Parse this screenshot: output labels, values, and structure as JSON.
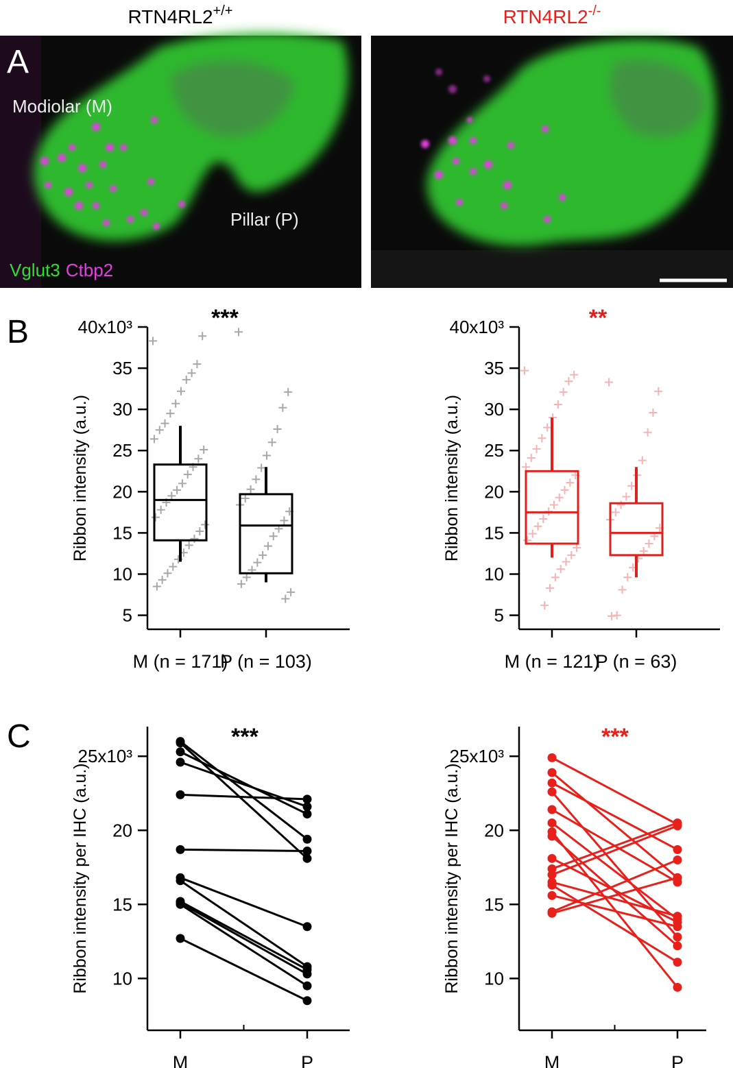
{
  "panel_a": {
    "label": "A",
    "headers": [
      {
        "text": "RTN4RL2",
        "sup": "+/+"
      },
      {
        "text": "RTN4RL2",
        "sup": "-/-"
      }
    ],
    "region_labels": [
      "Modiolar (M)",
      "Pillar (P)"
    ],
    "stains": [
      "Vglut3",
      "Ctbp2"
    ]
  },
  "chart_data": [
    {
      "type": "box",
      "panel_label": "B",
      "annotation": "***",
      "ylabel": "Ribbon intensity (a.u.)",
      "color": "#000000",
      "point_color": "#a8a8a8",
      "categories": [
        "M (n = 171)",
        "P (n = 103)"
      ],
      "ylim": [
        3.3,
        40
      ],
      "yticks": [
        {
          "value": 40,
          "label": "40x10³"
        },
        35,
        30,
        25,
        20,
        15,
        10,
        5
      ],
      "boxes": [
        {
          "whisker_low": 11.5,
          "q1": 14.1,
          "median": 19,
          "q3": 23.3,
          "whisker_high": 28,
          "points": [
            38.3,
            38.9,
            35.5,
            34.4,
            33.6,
            32.2,
            30.7,
            29.5,
            28.3,
            27.5,
            26.4,
            25.1,
            24.0,
            23.0,
            22.1,
            21.0,
            20.2,
            19.5,
            18.7,
            17.8,
            16.9,
            16.0,
            15.2,
            14.3,
            13.5,
            12.6,
            11.8,
            10.9,
            10.1,
            9.3,
            8.5
          ]
        },
        {
          "whisker_low": 9,
          "q1": 10.1,
          "median": 15.9,
          "q3": 19.7,
          "whisker_high": 23,
          "points": [
            39.4,
            32.1,
            30.2,
            27.6,
            26.0,
            24.4,
            22.9,
            21.5,
            20.3,
            19.2,
            18.4,
            17.6,
            16.5,
            15.5,
            14.6,
            13.4,
            12.3,
            11.4,
            10.5,
            9.6,
            8.8,
            7.8,
            7.0
          ]
        }
      ]
    },
    {
      "type": "box",
      "annotation": "**",
      "ylabel": "Ribbon intensity (a.u.)",
      "color": "#e0201c",
      "point_color": "#f4b4b4",
      "categories": [
        "M (n = 121)",
        "P (n = 63)"
      ],
      "ylim": [
        3.3,
        40
      ],
      "yticks": [
        {
          "value": 40,
          "label": "40x10³"
        },
        35,
        30,
        25,
        20,
        15,
        10,
        5
      ],
      "boxes": [
        {
          "whisker_low": 12,
          "q1": 13.7,
          "median": 17.5,
          "q3": 22.5,
          "whisker_high": 29,
          "points": [
            34.7,
            34.2,
            33.4,
            32.1,
            30.6,
            29.0,
            27.8,
            26.5,
            25.2,
            24.1,
            23.0,
            22.0,
            21.1,
            20.2,
            19.3,
            18.4,
            17.6,
            16.7,
            15.8,
            14.9,
            14.1,
            13.2,
            12.3,
            11.5,
            10.6,
            9.6,
            8.3,
            6.2
          ]
        },
        {
          "whisker_low": 9.6,
          "q1": 12.3,
          "median": 15,
          "q3": 18.6,
          "whisker_high": 23,
          "points": [
            33.3,
            32.2,
            29.6,
            27.2,
            23.8,
            22.0,
            20.7,
            19.4,
            18.4,
            17.5,
            16.6,
            15.6,
            14.6,
            13.7,
            12.8,
            11.9,
            10.8,
            9.6,
            8.1,
            5.0,
            4.9
          ]
        }
      ]
    },
    {
      "type": "paired",
      "panel_label": "C",
      "annotation": "***",
      "ylabel": "Ribbon intensity per IHC (a.u.)",
      "color": "#000000",
      "categories": [
        "M",
        "P"
      ],
      "ylim": [
        6.5,
        27
      ],
      "yticks": [
        {
          "value": 25,
          "label": "25x10³"
        },
        20,
        15,
        10
      ],
      "lines": [
        [
          26.0,
          19.4
        ],
        [
          25.9,
          18.1
        ],
        [
          25.3,
          21.1
        ],
        [
          24.6,
          21.6
        ],
        [
          22.4,
          22.1
        ],
        [
          18.7,
          18.6
        ],
        [
          16.8,
          13.5
        ],
        [
          16.6,
          10.8
        ],
        [
          15.2,
          10.6
        ],
        [
          15.1,
          10.3
        ],
        [
          15.0,
          9.5
        ],
        [
          12.7,
          8.5
        ]
      ]
    },
    {
      "type": "paired",
      "annotation": "***",
      "ylabel": "Ribbon intensity per IHC (a.u.)",
      "color": "#e8201c",
      "categories": [
        "M",
        "P"
      ],
      "ylim": [
        6.5,
        27
      ],
      "yticks": [
        {
          "value": 25,
          "label": "25x10³"
        },
        20,
        15,
        10
      ],
      "lines": [
        [
          24.9,
          20.4
        ],
        [
          23.9,
          16.8
        ],
        [
          23.2,
          18.7
        ],
        [
          22.6,
          12.8
        ],
        [
          21.4,
          16.5
        ],
        [
          20.5,
          14.0
        ],
        [
          19.9,
          9.4
        ],
        [
          19.6,
          12.2
        ],
        [
          18.1,
          13.8
        ],
        [
          17.4,
          20.5
        ],
        [
          17.0,
          20.3
        ],
        [
          16.5,
          14.2
        ],
        [
          16.3,
          11.1
        ],
        [
          15.6,
          13.5
        ],
        [
          14.5,
          18.0
        ],
        [
          14.4,
          16.8
        ]
      ]
    }
  ]
}
